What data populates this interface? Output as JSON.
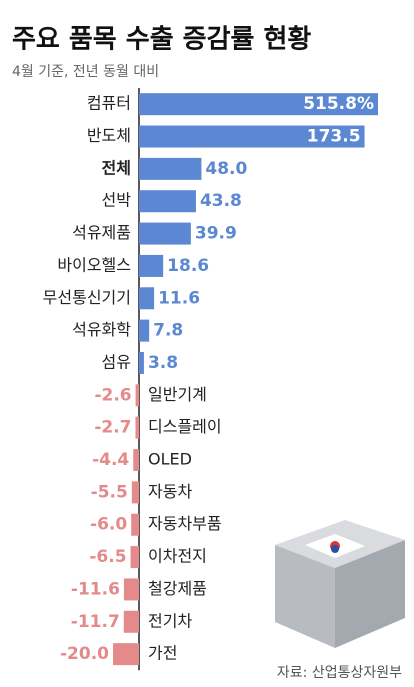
{
  "chart_data": {
    "type": "bar",
    "orientation": "horizontal",
    "title": "주요 품목 수출 증감률 현황",
    "subtitle": "4월 기준, 전년 동월 대비",
    "source": "자료: 산업통상자원부",
    "categories": [
      "컴퓨터",
      "반도체",
      "전체",
      "선박",
      "석유제품",
      "바이오헬스",
      "무선통신기기",
      "석유화학",
      "섬유",
      "일반기계",
      "디스플레이",
      "OLED",
      "자동차",
      "자동차부품",
      "이차전지",
      "철강제품",
      "전기차",
      "가전"
    ],
    "values": [
      515.8,
      173.5,
      48.0,
      43.8,
      39.9,
      18.6,
      11.6,
      7.8,
      3.8,
      -2.6,
      -2.7,
      -4.4,
      -5.5,
      -6.0,
      -6.5,
      -11.6,
      -11.7,
      -20.0
    ],
    "value_labels": [
      "515.8%",
      "173.5",
      "48.0",
      "43.8",
      "39.9",
      "18.6",
      "11.6",
      "7.8",
      "3.8",
      "-2.6",
      "-2.7",
      "-4.4",
      "-5.5",
      "-6.0",
      "-6.5",
      "-11.6",
      "-11.7",
      "-20.0"
    ],
    "positive_color": "#5b87d3",
    "negative_color": "#e58a8a",
    "highlight_index": 2
  }
}
